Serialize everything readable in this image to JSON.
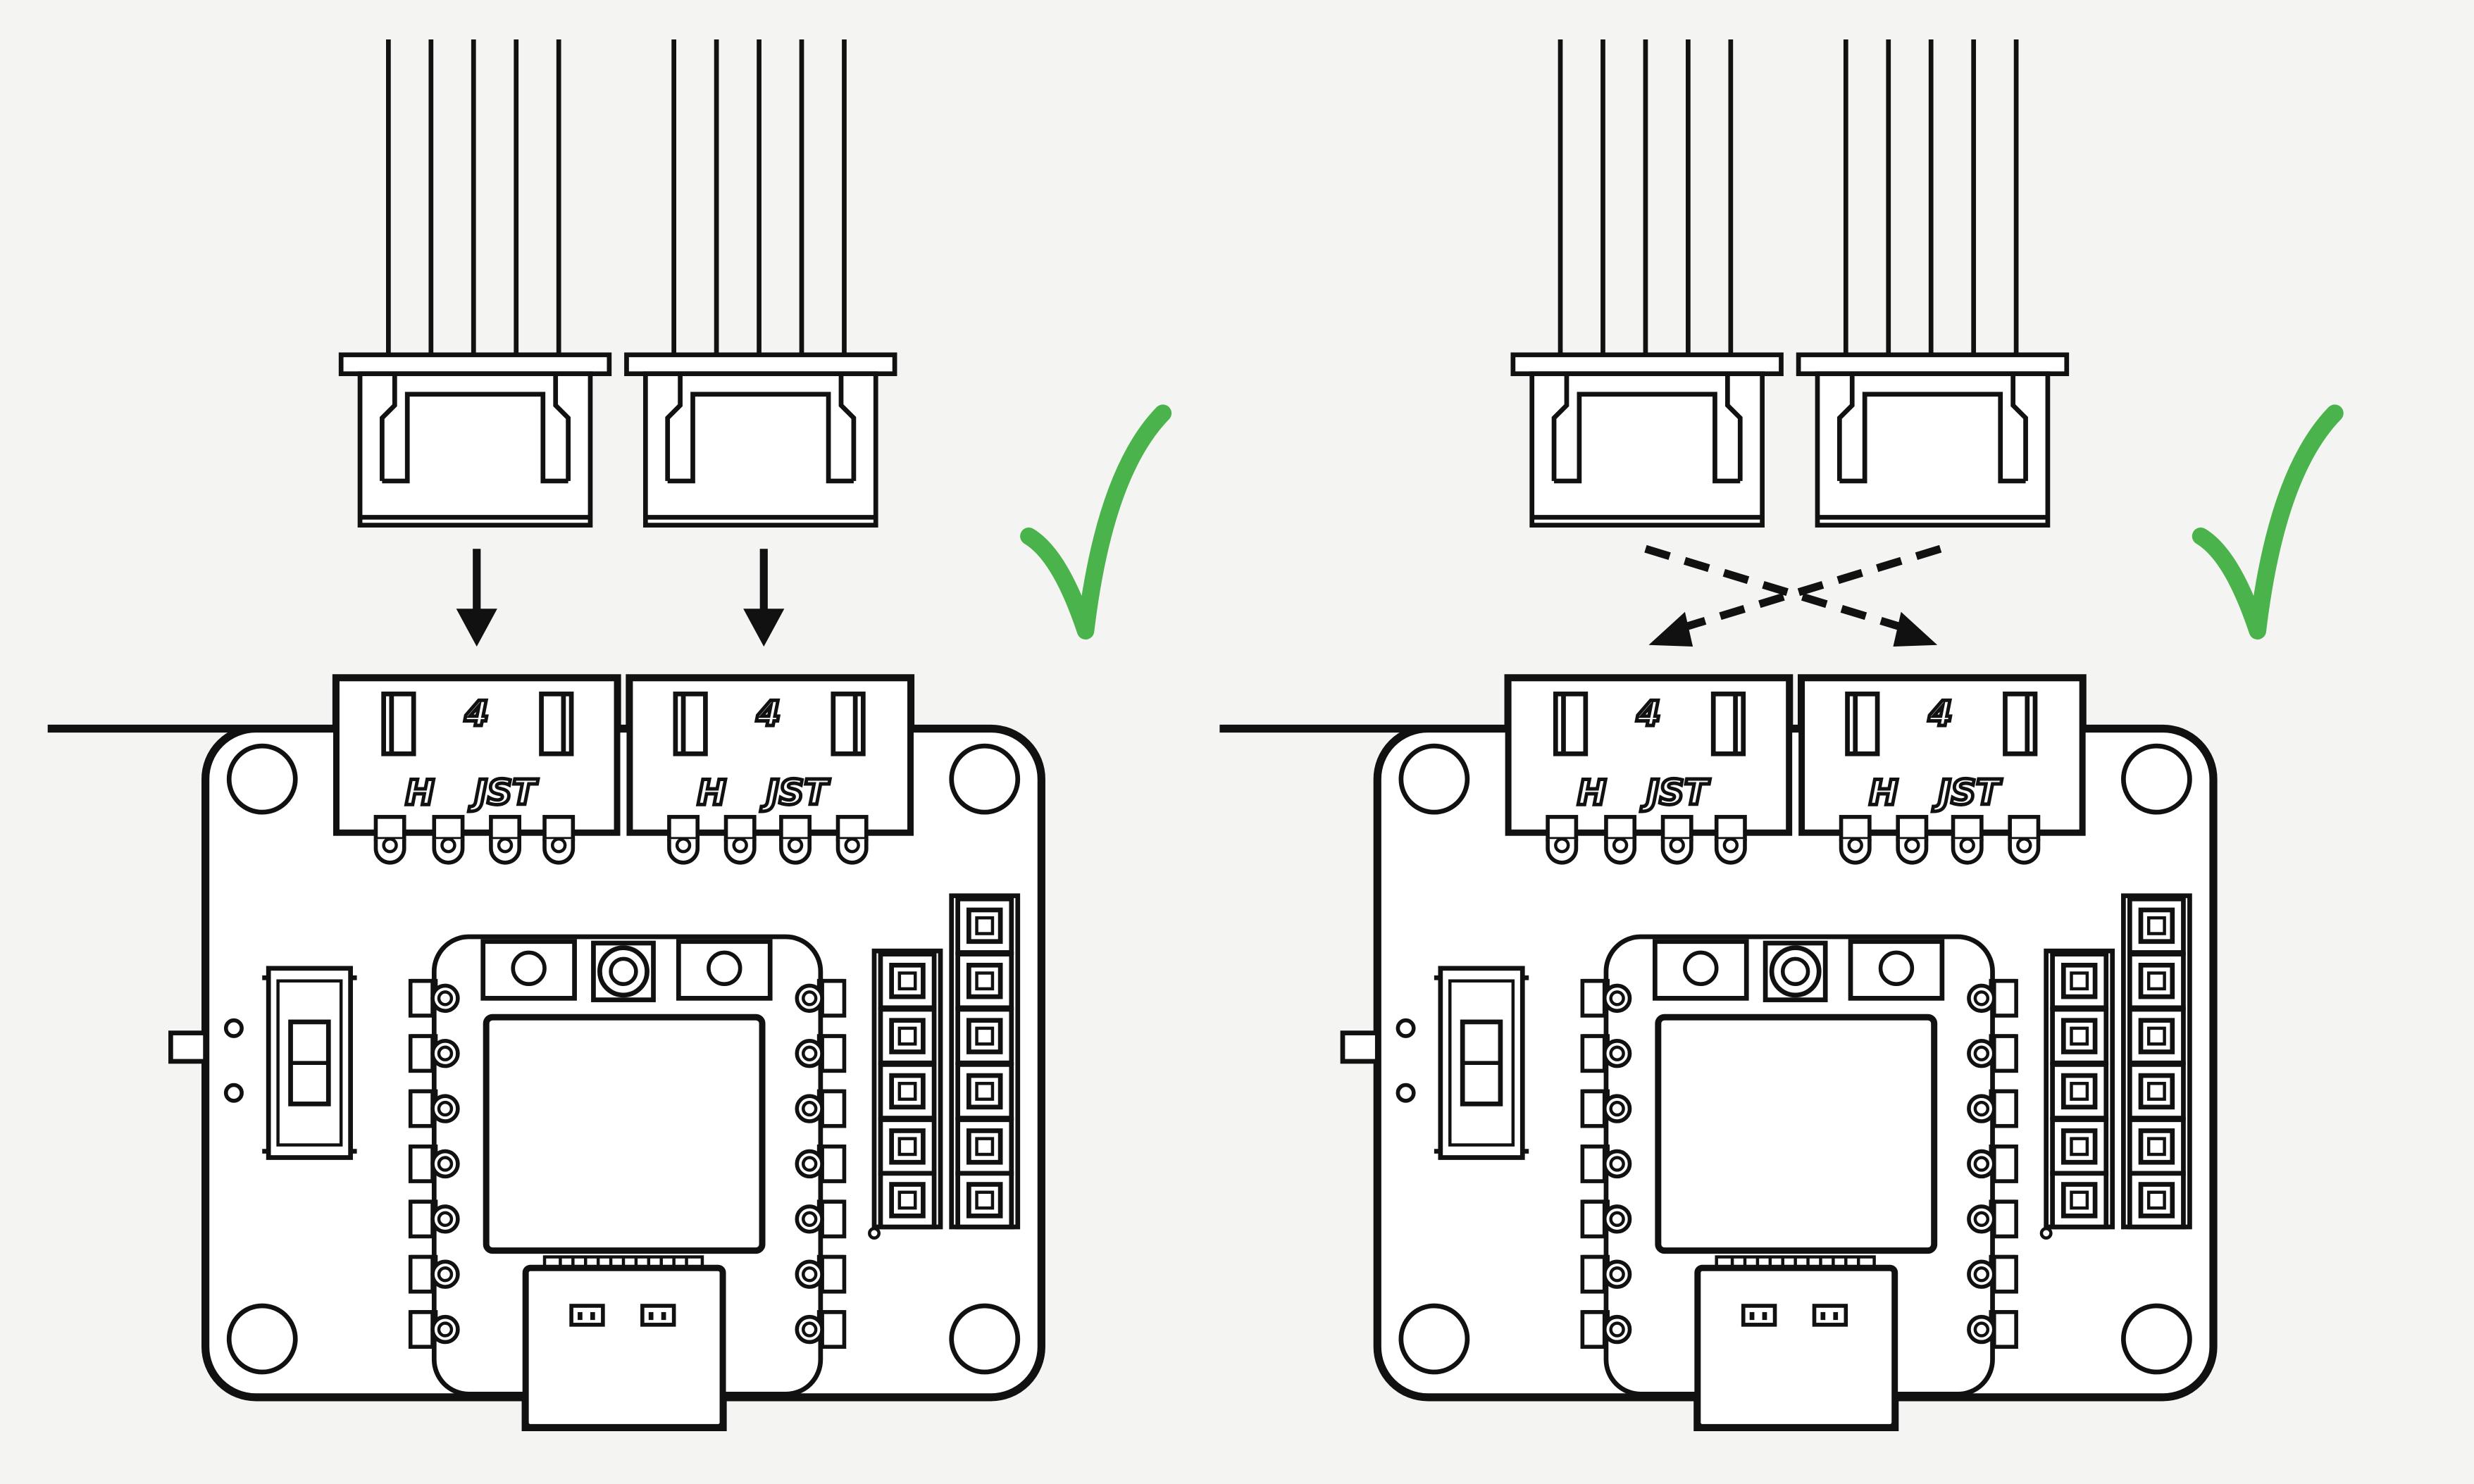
{
  "panels": [
    {
      "id": "direct",
      "status": "correct",
      "arrow_style": "solid",
      "connectors": [
        {
          "count_label": "4",
          "brand_h": "H",
          "brand_jst": "JST"
        },
        {
          "count_label": "4",
          "brand_h": "H",
          "brand_jst": "JST"
        }
      ]
    },
    {
      "id": "crossed",
      "status": "correct",
      "arrow_style": "dashed",
      "connectors": [
        {
          "count_label": "4",
          "brand_h": "H",
          "brand_jst": "JST"
        },
        {
          "count_label": "4",
          "brand_h": "H",
          "brand_jst": "JST"
        }
      ]
    }
  ],
  "colors": {
    "background": "#f4f4f2",
    "line": "#111111",
    "board_fill": "#ffffff",
    "check": "#4bb34b"
  },
  "icons": {
    "status_correct": "checkmark-icon"
  }
}
